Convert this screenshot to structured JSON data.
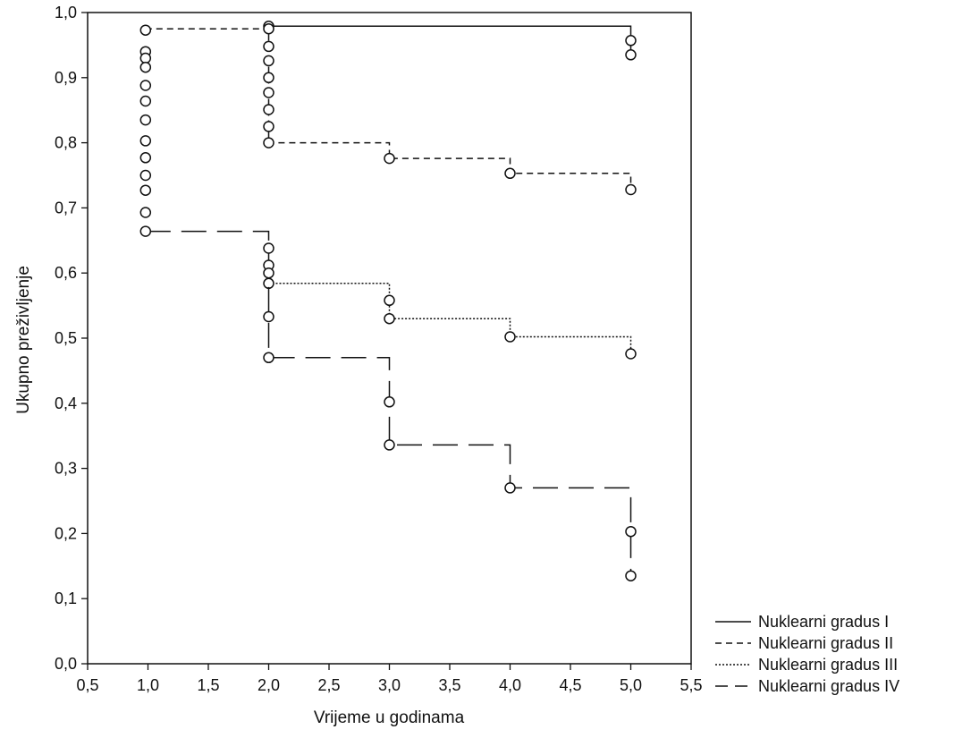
{
  "chart_data": {
    "type": "line",
    "step": true,
    "title": "",
    "xlabel": "Vrijeme u godinama",
    "ylabel": "Ukupno preživljenje",
    "xlim": [
      0.5,
      5.5
    ],
    "ylim": [
      0.0,
      1.0
    ],
    "x_ticks": [
      0.5,
      1.0,
      1.5,
      2.0,
      2.5,
      3.0,
      3.5,
      4.0,
      4.5,
      5.0,
      5.5
    ],
    "x_tick_labels": [
      "0,5",
      "1,0",
      "1,5",
      "2,0",
      "2,5",
      "3,0",
      "3,5",
      "4,0",
      "4,5",
      "5,0",
      "5,5"
    ],
    "y_ticks": [
      0.0,
      0.1,
      0.2,
      0.3,
      0.4,
      0.5,
      0.6,
      0.7,
      0.8,
      0.9,
      1.0
    ],
    "y_tick_labels": [
      "0,0",
      "0,1",
      "0,2",
      "0,3",
      "0,4",
      "0,5",
      "0,6",
      "0,7",
      "0,8",
      "0,9",
      "1,0"
    ],
    "grid": false,
    "legend_position": "bottom-right, outside plot",
    "line_color": "#111111",
    "series": [
      {
        "name": "Nuklearni gradus I",
        "dash": "solid",
        "steps": [
          [
            2.0,
            0.979
          ],
          [
            5.0,
            0.979
          ],
          [
            5.0,
            0.935
          ]
        ],
        "markers": [
          [
            2.0,
            0.979
          ],
          [
            5.0,
            0.957
          ],
          [
            5.0,
            0.935
          ]
        ]
      },
      {
        "name": "Nuklearni gradus II",
        "dash": "dashed",
        "steps": [
          [
            0.98,
            0.975
          ],
          [
            2.0,
            0.975
          ],
          [
            2.0,
            0.8
          ],
          [
            3.0,
            0.8
          ],
          [
            3.0,
            0.776
          ],
          [
            4.0,
            0.776
          ],
          [
            4.0,
            0.753
          ],
          [
            5.0,
            0.753
          ],
          [
            5.0,
            0.728
          ]
        ],
        "markers": [
          [
            0.98,
            0.973
          ],
          [
            2.0,
            0.975
          ],
          [
            2.0,
            0.948
          ],
          [
            2.0,
            0.926
          ],
          [
            2.0,
            0.9
          ],
          [
            2.0,
            0.877
          ],
          [
            2.0,
            0.851
          ],
          [
            2.0,
            0.825
          ],
          [
            2.0,
            0.8
          ],
          [
            3.0,
            0.776
          ],
          [
            4.0,
            0.753
          ],
          [
            5.0,
            0.728
          ]
        ]
      },
      {
        "name": "Nuklearni gradus III",
        "dash": "dotted",
        "steps": [
          [
            2.0,
            0.584
          ],
          [
            3.0,
            0.584
          ],
          [
            3.0,
            0.53
          ],
          [
            4.0,
            0.53
          ],
          [
            4.0,
            0.502
          ],
          [
            5.0,
            0.502
          ],
          [
            5.0,
            0.476
          ]
        ],
        "markers": [
          [
            2.0,
            0.584
          ],
          [
            3.0,
            0.558
          ],
          [
            3.0,
            0.53
          ],
          [
            4.0,
            0.502
          ],
          [
            5.0,
            0.476
          ]
        ]
      },
      {
        "name": "Nuklearni gradus IV",
        "dash": "long-dash",
        "steps": [
          [
            0.98,
            0.664
          ],
          [
            2.0,
            0.664
          ],
          [
            2.0,
            0.47
          ],
          [
            3.0,
            0.47
          ],
          [
            3.0,
            0.336
          ],
          [
            4.0,
            0.336
          ],
          [
            4.0,
            0.27
          ],
          [
            5.0,
            0.27
          ],
          [
            5.0,
            0.135
          ]
        ],
        "markers": [
          [
            0.98,
            0.94
          ],
          [
            0.98,
            0.93
          ],
          [
            0.98,
            0.916
          ],
          [
            0.98,
            0.888
          ],
          [
            0.98,
            0.864
          ],
          [
            0.98,
            0.835
          ],
          [
            0.98,
            0.803
          ],
          [
            0.98,
            0.777
          ],
          [
            0.98,
            0.75
          ],
          [
            0.98,
            0.727
          ],
          [
            0.98,
            0.693
          ],
          [
            0.98,
            0.664
          ],
          [
            2.0,
            0.638
          ],
          [
            2.0,
            0.612
          ],
          [
            2.0,
            0.6
          ],
          [
            2.0,
            0.533
          ],
          [
            2.0,
            0.47
          ],
          [
            3.0,
            0.402
          ],
          [
            3.0,
            0.336
          ],
          [
            4.0,
            0.27
          ],
          [
            5.0,
            0.203
          ],
          [
            5.0,
            0.135
          ]
        ]
      }
    ]
  }
}
